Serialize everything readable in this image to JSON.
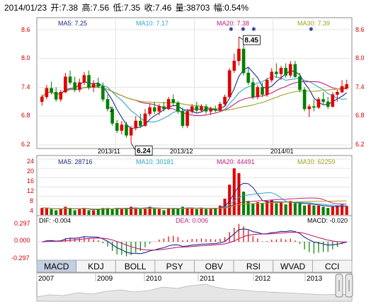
{
  "header": {
    "date": "2014/01/23",
    "open_label": "开:",
    "open": "7.38",
    "high_label": "高:",
    "high": "7.56",
    "low_label": "低:",
    "low": "7.35",
    "close_label": "收:",
    "close": "7.46",
    "volume_label": "量:",
    "volume": "38703",
    "change_label": "幅:",
    "change": "0.54%"
  },
  "colors": {
    "up": "#e00000",
    "down": "#008000",
    "ma5": "#1a2a8a",
    "ma10": "#2fa8c8",
    "ma20": "#c0207a",
    "ma30": "#a0a020",
    "grid": "#e4e4e4",
    "frame": "#8d8d8d",
    "tab_active": "#c4cfe2"
  },
  "price_legend": {
    "ma5": "MA5: 7.25",
    "ma10": "MA10: 7.17",
    "ma20": "MA20: 7.38",
    "ma30": "MA30: 7.39"
  },
  "volume_legend": {
    "ma5": "MA5: 28716",
    "ma10": "MA10: 30181",
    "ma20": "MA20: 44491",
    "ma30": "MA30: 62259"
  },
  "macd_legend": {
    "dif": "DIF: -0.004",
    "dea": "DEA: 0.006",
    "macd": "MACD: -0.020"
  },
  "annotations": {
    "high_label": "8.45",
    "low_label": "6.24"
  },
  "date_labels": [
    "2013/11",
    "2013/12",
    "2014/01"
  ],
  "tabs": [
    "MACD",
    "KDJ",
    "BOLL",
    "PSY",
    "OBV",
    "RSI",
    "WVAD",
    "CCI"
  ],
  "active_tab": 0,
  "year_labels": [
    "2007",
    "2009",
    "2010",
    "2011",
    "2012",
    "2013"
  ],
  "chart_data": [
    {
      "type": "candlestick",
      "ylim": [
        6.2,
        8.6
      ],
      "yticks": [
        "8.6",
        "8.0",
        "7.4",
        "6.8",
        "6.2"
      ],
      "ohlc": [
        [
          7.1,
          7.25,
          7.02,
          7.2
        ],
        [
          7.2,
          7.45,
          7.15,
          7.38
        ],
        [
          7.38,
          7.52,
          7.25,
          7.3
        ],
        [
          7.3,
          7.4,
          7.1,
          7.15
        ],
        [
          7.15,
          7.35,
          7.1,
          7.3
        ],
        [
          7.3,
          7.7,
          7.28,
          7.62
        ],
        [
          7.62,
          7.75,
          7.45,
          7.5
        ],
        [
          7.5,
          7.62,
          7.3,
          7.35
        ],
        [
          7.35,
          7.58,
          7.3,
          7.5
        ],
        [
          7.5,
          7.72,
          7.45,
          7.65
        ],
        [
          7.65,
          7.75,
          7.35,
          7.4
        ],
        [
          7.4,
          7.55,
          7.3,
          7.48
        ],
        [
          7.48,
          7.6,
          7.38,
          7.42
        ],
        [
          7.42,
          7.5,
          7.1,
          7.15
        ],
        [
          7.15,
          7.25,
          6.9,
          6.95
        ],
        [
          6.95,
          7.0,
          6.6,
          6.65
        ],
        [
          6.65,
          6.72,
          6.45,
          6.5
        ],
        [
          6.5,
          6.7,
          6.42,
          6.62
        ],
        [
          6.62,
          6.68,
          6.35,
          6.4
        ],
        [
          6.4,
          6.6,
          6.24,
          6.55
        ],
        [
          6.55,
          6.8,
          6.5,
          6.7
        ],
        [
          6.7,
          6.85,
          6.55,
          6.6
        ],
        [
          6.6,
          6.95,
          6.58,
          6.85
        ],
        [
          6.85,
          7.05,
          6.8,
          6.98
        ],
        [
          6.98,
          7.1,
          6.85,
          6.9
        ],
        [
          6.9,
          7.05,
          6.82,
          7.0
        ],
        [
          7.0,
          7.1,
          6.9,
          6.95
        ],
        [
          6.95,
          7.2,
          6.92,
          7.15
        ],
        [
          7.15,
          7.25,
          7.02,
          7.08
        ],
        [
          7.08,
          7.12,
          6.85,
          6.9
        ],
        [
          6.9,
          6.98,
          6.55,
          6.6
        ],
        [
          6.6,
          6.95,
          6.55,
          6.9
        ],
        [
          6.9,
          7.05,
          6.85,
          7.0
        ],
        [
          7.0,
          7.1,
          6.88,
          6.92
        ],
        [
          6.92,
          7.05,
          6.88,
          7.0
        ],
        [
          7.0,
          7.05,
          6.85,
          6.9
        ],
        [
          6.9,
          7.0,
          6.82,
          6.95
        ],
        [
          6.95,
          7.02,
          6.88,
          6.92
        ],
        [
          6.92,
          7.1,
          6.9,
          7.05
        ],
        [
          7.05,
          7.25,
          7.0,
          7.2
        ],
        [
          7.2,
          7.8,
          7.18,
          7.75
        ],
        [
          7.75,
          8.1,
          7.7,
          7.95
        ],
        [
          7.95,
          8.45,
          7.85,
          8.2
        ],
        [
          8.2,
          8.3,
          7.65,
          7.7
        ],
        [
          7.7,
          7.8,
          7.45,
          7.5
        ],
        [
          7.5,
          7.6,
          7.15,
          7.2
        ],
        [
          7.2,
          7.45,
          7.15,
          7.4
        ],
        [
          7.4,
          7.5,
          7.2,
          7.25
        ],
        [
          7.25,
          7.6,
          7.2,
          7.55
        ],
        [
          7.55,
          7.8,
          7.5,
          7.72
        ],
        [
          7.72,
          7.9,
          7.6,
          7.68
        ],
        [
          7.68,
          7.85,
          7.55,
          7.8
        ],
        [
          7.8,
          7.9,
          7.6,
          7.65
        ],
        [
          7.65,
          7.95,
          7.6,
          7.88
        ],
        [
          7.88,
          7.95,
          7.6,
          7.62
        ],
        [
          7.62,
          7.7,
          7.3,
          7.35
        ],
        [
          7.35,
          7.4,
          6.9,
          6.95
        ],
        [
          6.95,
          7.05,
          6.78,
          7.0
        ],
        [
          7.0,
          7.15,
          6.9,
          6.98
        ],
        [
          6.98,
          7.2,
          6.95,
          7.15
        ],
        [
          7.15,
          7.3,
          7.05,
          7.1
        ],
        [
          7.1,
          7.2,
          6.95,
          7.0
        ],
        [
          7.0,
          7.3,
          6.98,
          7.25
        ],
        [
          7.25,
          7.35,
          7.1,
          7.3
        ],
        [
          7.3,
          7.55,
          7.28,
          7.42
        ],
        [
          7.38,
          7.56,
          7.35,
          7.46
        ]
      ],
      "annotations": [
        {
          "text": "8.45",
          "value": 8.45
        },
        {
          "text": "6.24",
          "value": 6.24
        }
      ]
    },
    {
      "type": "bar",
      "name": "volume",
      "ylim": [
        0,
        24
      ],
      "yticks": [
        "24",
        "20",
        "16",
        "12",
        "8",
        "4"
      ],
      "values": [
        3,
        3,
        2.5,
        2,
        2.5,
        3.5,
        3,
        2,
        2.5,
        3,
        2,
        2,
        2.5,
        3,
        3,
        2.5,
        3,
        2.5,
        3,
        3.5,
        3,
        2.5,
        3,
        3.5,
        3,
        2.5,
        2,
        3,
        3,
        2.5,
        3.5,
        3,
        3,
        2.5,
        3,
        2.5,
        2.5,
        3,
        4,
        7,
        13,
        20,
        18,
        10,
        6,
        5,
        5.5,
        5,
        6,
        6.5,
        5,
        5.5,
        4.5,
        6,
        5,
        5,
        4,
        4.5,
        4,
        4,
        3.5,
        3,
        3.5,
        4,
        4.5,
        3.8
      ],
      "ma_legend": [
        "MA5: 28716",
        "MA10: 30181",
        "MA20: 44491",
        "MA30: 62259"
      ]
    },
    {
      "type": "line",
      "name": "macd",
      "ylim": [
        -0.297,
        0.297
      ],
      "yticks": [
        "0.297",
        "0.000",
        "-0.297"
      ],
      "legend": [
        "DIF: -0.004",
        "DEA: 0.006",
        "MACD: -0.020"
      ]
    }
  ]
}
